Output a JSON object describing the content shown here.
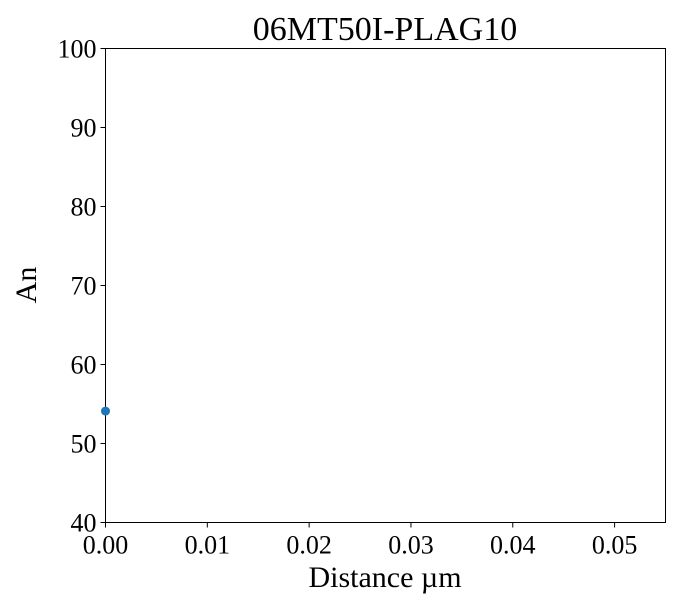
{
  "chart_data": {
    "type": "scatter",
    "title": "06MT50I-PLAG10",
    "xlabel": "Distance µm",
    "ylabel": "An",
    "xlim": [
      0,
      0.055
    ],
    "ylim": [
      40,
      100
    ],
    "x_ticks": [
      "0.00",
      "0.01",
      "0.02",
      "0.03",
      "0.04",
      "0.05"
    ],
    "y_ticks": [
      "40",
      "50",
      "60",
      "70",
      "80",
      "90",
      "100"
    ],
    "grid": false,
    "series": [
      {
        "color": "#1f77b4",
        "points": [
          {
            "x": 0.0,
            "y": 54.1
          }
        ]
      }
    ]
  }
}
